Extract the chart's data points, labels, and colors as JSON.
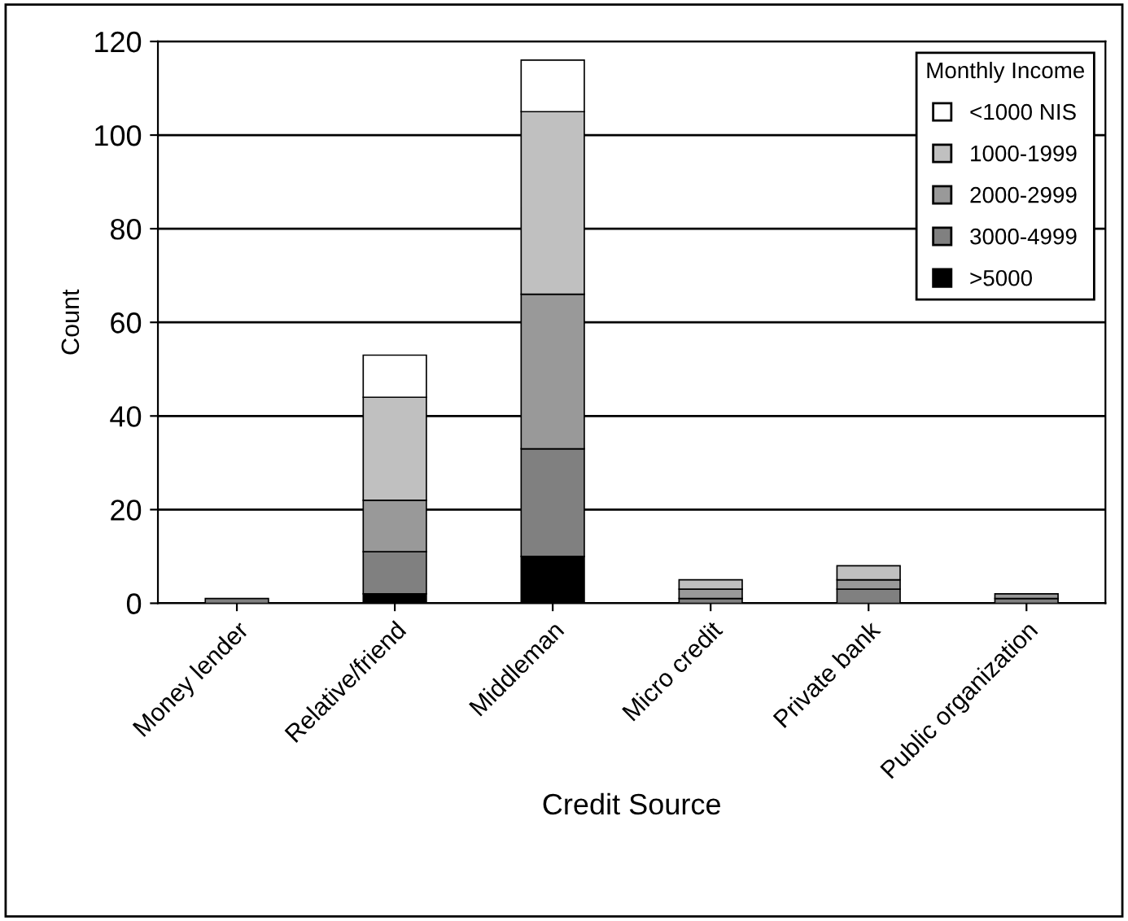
{
  "chart_data": {
    "type": "bar",
    "stacked": true,
    "xlabel": "Credit Source",
    "ylabel": "Count",
    "legend_title": "Monthly Income",
    "legend": "top right",
    "grid": "y",
    "ylim": [
      0,
      120
    ],
    "yticks": [
      0,
      20,
      40,
      60,
      80,
      100,
      120
    ],
    "categories": [
      "Money lender",
      "Relative/friend",
      "Middleman",
      "Micro credit",
      "Private bank",
      "Public organization"
    ],
    "series": [
      {
        "name": ">5000",
        "color": "#000000",
        "values": [
          null,
          2,
          10,
          null,
          null,
          null
        ]
      },
      {
        "name": "3000-4999",
        "color": "#808080",
        "values": [
          1,
          9,
          23,
          1,
          3,
          1
        ]
      },
      {
        "name": "2000-2999",
        "color": "#999999",
        "values": [
          null,
          11,
          33,
          2,
          2,
          1
        ]
      },
      {
        "name": "1000-1999",
        "color": "#c0c0c0",
        "values": [
          null,
          22,
          39,
          2,
          3,
          null
        ]
      },
      {
        "name": "<1000 NIS",
        "color": "#ffffff",
        "values": [
          null,
          9,
          11,
          null,
          null,
          null
        ]
      }
    ]
  }
}
